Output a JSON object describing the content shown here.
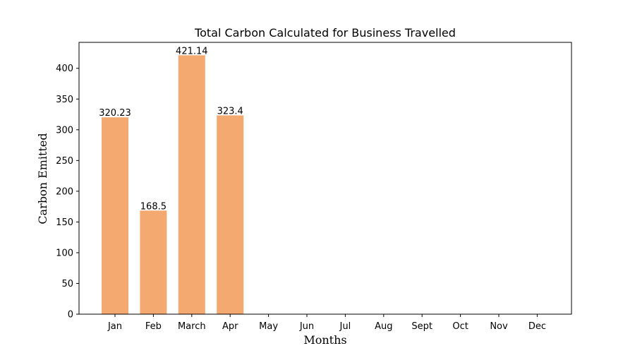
{
  "chart_data": {
    "type": "bar",
    "title": "Total Carbon Calculated for Business Travelled",
    "xlabel": "Months",
    "ylabel": "Carbon Emitted",
    "categories": [
      "Jan",
      "Feb",
      "March",
      "Apr",
      "May",
      "Jun",
      "Jul",
      "Aug",
      "Sept",
      "Oct",
      "Nov",
      "Dec"
    ],
    "values": [
      320.23,
      168.5,
      421.14,
      323.4,
      0,
      0,
      0,
      0,
      0,
      0,
      0,
      0
    ],
    "data_labels": [
      "320.23",
      "168.5",
      "421.14",
      "323.4",
      "",
      "",
      "",
      "",
      "",
      "",
      "",
      ""
    ],
    "ylim": [
      0,
      442.2
    ],
    "yticks": [
      0,
      50,
      100,
      150,
      200,
      250,
      300,
      350,
      400
    ],
    "grid": false,
    "legend": "none",
    "bar_color": "#f4a971"
  }
}
